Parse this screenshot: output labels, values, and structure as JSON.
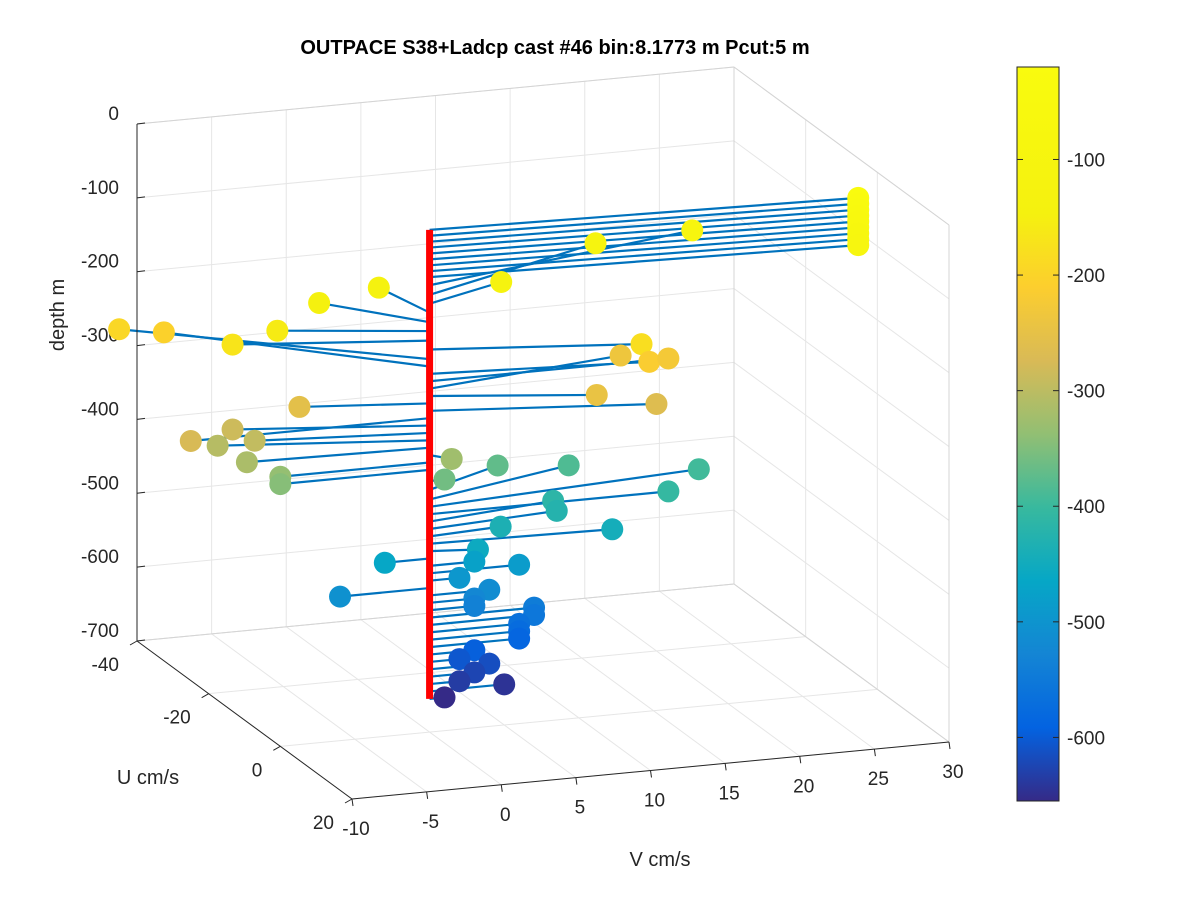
{
  "chart_data": {
    "type": "scatter",
    "title": "OUTPACE S38+Ladcp cast #46 bin:8.1773 m  Pcut:5 m",
    "xlabel": "V cm/s",
    "ylabel": "U cm/s",
    "zlabel": "depth m",
    "xlim": [
      -10,
      30
    ],
    "ylim": [
      -40,
      20
    ],
    "zlim": [
      -700,
      0
    ],
    "x_ticks": [
      "-10",
      "-5",
      "0",
      "5",
      "10",
      "15",
      "20",
      "25",
      "30"
    ],
    "y_ticks": [
      "-40",
      "-20",
      "0",
      "20"
    ],
    "z_ticks": [
      "0",
      "-100",
      "-200",
      "-300",
      "-400",
      "-500",
      "-600",
      "-700"
    ],
    "grid": true,
    "colorbar": {
      "ticks": [
        "-100",
        "-200",
        "-300",
        "-400",
        "-500",
        "-600"
      ],
      "range": [
        -655,
        -20
      ],
      "colormap": "parula"
    },
    "profile_line_color": "#ff0000",
    "stick_color": "#0072bd",
    "series": [
      {
        "type": "velocity-sticks",
        "marker": "filled-circle",
        "points": [
          {
            "depth": -20,
            "u": 3,
            "v": 28
          },
          {
            "depth": -28,
            "u": 3,
            "v": 28
          },
          {
            "depth": -36,
            "u": 3,
            "v": 28
          },
          {
            "depth": -44,
            "u": 3,
            "v": 28
          },
          {
            "depth": -52,
            "u": 3,
            "v": 28
          },
          {
            "depth": -60,
            "u": 3,
            "v": 28
          },
          {
            "depth": -68,
            "u": 3,
            "v": 28
          },
          {
            "depth": -76,
            "u": 3,
            "v": 28
          },
          {
            "depth": -84,
            "u": 3,
            "v": 28
          },
          {
            "depth": -95,
            "u": -10,
            "v": 20
          },
          {
            "depth": -108,
            "u": -12,
            "v": 14
          },
          {
            "depth": -120,
            "u": -5,
            "v": 6
          },
          {
            "depth": -132,
            "u": -10,
            "v": -1
          },
          {
            "depth": -145,
            "u": -10,
            "v": -5
          },
          {
            "depth": -157,
            "u": -5,
            "v": -9
          },
          {
            "depth": -170,
            "u": -5,
            "v": -12
          },
          {
            "depth": -182,
            "u": 5,
            "v": 13
          },
          {
            "depth": -195,
            "u": -20,
            "v": -16
          },
          {
            "depth": -205,
            "u": -20,
            "v": -13
          },
          {
            "depth": -215,
            "u": 3,
            "v": 14
          },
          {
            "depth": -225,
            "u": 0,
            "v": 16
          },
          {
            "depth": -235,
            "u": -5,
            "v": 14
          },
          {
            "depth": -245,
            "u": 5,
            "v": 10
          },
          {
            "depth": -255,
            "u": -3,
            "v": -8
          },
          {
            "depth": -265,
            "u": 5,
            "v": 14
          },
          {
            "depth": -275,
            "u": 0,
            "v": -16
          },
          {
            "depth": -285,
            "u": -5,
            "v": -12
          },
          {
            "depth": -295,
            "u": -3,
            "v": -11
          },
          {
            "depth": -305,
            "u": -5,
            "v": -13
          },
          {
            "depth": -315,
            "u": -1,
            "v": -12
          },
          {
            "depth": -325,
            "u": 2,
            "v": 1
          },
          {
            "depth": -335,
            "u": 0,
            "v": -10
          },
          {
            "depth": -345,
            "u": 0,
            "v": -10
          },
          {
            "depth": -360,
            "u": 0,
            "v": 1
          },
          {
            "depth": -372,
            "u": -6,
            "v": 6
          },
          {
            "depth": -385,
            "u": -7,
            "v": 11
          },
          {
            "depth": -395,
            "u": -4,
            "v": 19
          },
          {
            "depth": -405,
            "u": 0,
            "v": 16
          },
          {
            "depth": -415,
            "u": -3,
            "v": 9
          },
          {
            "depth": -425,
            "u": -2,
            "v": 9
          },
          {
            "depth": -435,
            "u": -1,
            "v": 5
          },
          {
            "depth": -445,
            "u": 1,
            "v": 12
          },
          {
            "depth": -455,
            "u": 1,
            "v": 3
          },
          {
            "depth": -465,
            "u": 0,
            "v": -3
          },
          {
            "depth": -475,
            "u": 0,
            "v": 3
          },
          {
            "depth": -485,
            "u": 0,
            "v": 6
          },
          {
            "depth": -495,
            "u": 0,
            "v": 2
          },
          {
            "depth": -505,
            "u": 0,
            "v": -6
          },
          {
            "depth": -515,
            "u": 0,
            "v": 4
          },
          {
            "depth": -525,
            "u": 0,
            "v": 3
          },
          {
            "depth": -535,
            "u": 0,
            "v": 3
          },
          {
            "depth": -545,
            "u": 0,
            "v": 7
          },
          {
            "depth": -555,
            "u": 0,
            "v": 7
          },
          {
            "depth": -565,
            "u": 0,
            "v": 6
          },
          {
            "depth": -575,
            "u": 0,
            "v": 6
          },
          {
            "depth": -585,
            "u": 0,
            "v": 6
          },
          {
            "depth": -595,
            "u": 0,
            "v": 3
          },
          {
            "depth": -605,
            "u": 0,
            "v": 2
          },
          {
            "depth": -615,
            "u": 0,
            "v": 4
          },
          {
            "depth": -625,
            "u": 0,
            "v": 3
          },
          {
            "depth": -635,
            "u": 0,
            "v": 2
          },
          {
            "depth": -645,
            "u": 0,
            "v": 5
          },
          {
            "depth": -655,
            "u": 0,
            "v": 1
          }
        ]
      }
    ]
  }
}
